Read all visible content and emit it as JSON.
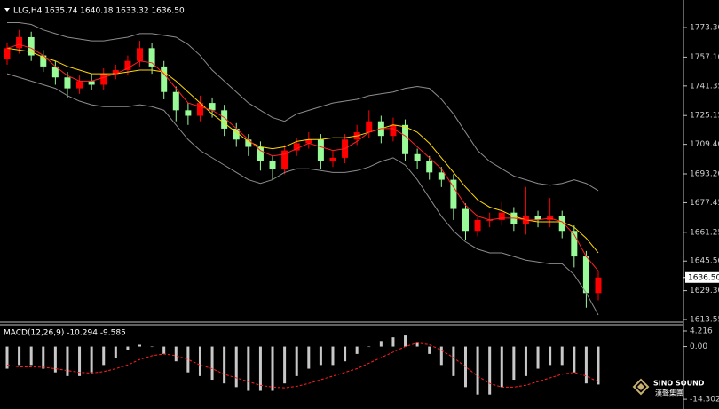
{
  "header": "LLG,H4  1635.74 1640.18 1633.32 1636.50",
  "logo": {
    "name": "SINO SOUND",
    "chinese": "漢聲集團"
  },
  "chart_data": [
    {
      "type": "candlestick",
      "up_color": "#ff0000",
      "down_color": "#98fb98",
      "open": [
        1756,
        1762,
        1768,
        1758,
        1752,
        1746,
        1740,
        1744,
        1742,
        1748,
        1750,
        1755,
        1762,
        1752,
        1738,
        1728,
        1725,
        1732,
        1728,
        1718,
        1712,
        1708,
        1700,
        1696,
        1706,
        1710,
        1712,
        1700,
        1702,
        1712,
        1716,
        1722,
        1714,
        1720,
        1704,
        1700,
        1694,
        1690,
        1674,
        1662,
        1668,
        1668,
        1672,
        1666,
        1670,
        1668,
        1670,
        1662,
        1648,
        1628
      ],
      "high": [
        1765,
        1772,
        1771,
        1761,
        1755,
        1749,
        1747,
        1748,
        1751,
        1753,
        1758,
        1766,
        1765,
        1755,
        1741,
        1732,
        1736,
        1735,
        1731,
        1721,
        1715,
        1711,
        1703,
        1709,
        1713,
        1716,
        1715,
        1706,
        1715,
        1720,
        1728,
        1725,
        1724,
        1723,
        1707,
        1703,
        1697,
        1693,
        1677,
        1671,
        1672,
        1678,
        1675,
        1686,
        1673,
        1680,
        1673,
        1665,
        1651,
        1640.18
      ],
      "low": [
        1753,
        1759,
        1755,
        1749,
        1742,
        1735,
        1737,
        1739,
        1739,
        1745,
        1747,
        1752,
        1748,
        1734,
        1722,
        1720,
        1722,
        1724,
        1714,
        1708,
        1703,
        1695,
        1690,
        1693,
        1703,
        1707,
        1696,
        1697,
        1699,
        1709,
        1713,
        1710,
        1711,
        1700,
        1696,
        1690,
        1686,
        1668,
        1657,
        1659,
        1664,
        1665,
        1662,
        1660,
        1664,
        1664,
        1658,
        1642,
        1620,
        1624
      ],
      "close": [
        1762,
        1768,
        1758,
        1752,
        1746,
        1740,
        1744,
        1742,
        1748,
        1750,
        1755,
        1762,
        1752,
        1738,
        1728,
        1725,
        1732,
        1728,
        1718,
        1712,
        1708,
        1700,
        1696,
        1706,
        1710,
        1712,
        1700,
        1702,
        1712,
        1716,
        1722,
        1714,
        1720,
        1704,
        1700,
        1694,
        1690,
        1674,
        1662,
        1668,
        1668,
        1672,
        1666,
        1670,
        1668,
        1670,
        1662,
        1648,
        1628,
        1636.5
      ],
      "lines": [
        {
          "color": "#8c8c8c",
          "values": [
            1776,
            1776,
            1775,
            1772,
            1770,
            1768,
            1767,
            1766,
            1766,
            1767,
            1768,
            1770,
            1770,
            1769,
            1768,
            1764,
            1758,
            1750,
            1744,
            1738,
            1732,
            1728,
            1724,
            1722,
            1726,
            1728,
            1730,
            1732,
            1733,
            1734,
            1736,
            1737,
            1738,
            1740,
            1741,
            1740,
            1734,
            1726,
            1716,
            1706,
            1700,
            1696,
            1692,
            1690,
            1688,
            1687,
            1688,
            1690,
            1688,
            1684
          ]
        },
        {
          "color": "#8c8c8c",
          "values": [
            1748,
            1746,
            1744,
            1742,
            1740,
            1736,
            1733,
            1731,
            1730,
            1730,
            1730,
            1731,
            1730,
            1728,
            1720,
            1712,
            1706,
            1702,
            1698,
            1694,
            1690,
            1688,
            1690,
            1694,
            1696,
            1696,
            1695,
            1694,
            1694,
            1695,
            1697,
            1700,
            1702,
            1698,
            1690,
            1680,
            1670,
            1662,
            1656,
            1652,
            1650,
            1650,
            1648,
            1646,
            1645,
            1644,
            1644,
            1638,
            1628,
            1616
          ]
        },
        {
          "color": "#ffd700",
          "values": [
            1762,
            1761,
            1760,
            1757,
            1755,
            1752,
            1750,
            1748,
            1748,
            1748,
            1749,
            1750,
            1750,
            1749,
            1744,
            1738,
            1732,
            1726,
            1721,
            1716,
            1711,
            1708,
            1707,
            1708,
            1711,
            1712,
            1712,
            1713,
            1713,
            1714,
            1716,
            1718,
            1720,
            1719,
            1716,
            1710,
            1702,
            1694,
            1686,
            1679,
            1675,
            1673,
            1670,
            1668,
            1667,
            1667,
            1667,
            1664,
            1658,
            1650
          ]
        },
        {
          "color": "#ff2020",
          "values": [
            1762,
            1764,
            1762,
            1758,
            1752,
            1747,
            1744,
            1744,
            1746,
            1748,
            1751,
            1755,
            1754,
            1748,
            1740,
            1732,
            1730,
            1728,
            1724,
            1718,
            1712,
            1706,
            1703,
            1704,
            1707,
            1710,
            1708,
            1706,
            1707,
            1711,
            1716,
            1718,
            1718,
            1714,
            1708,
            1702,
            1696,
            1686,
            1676,
            1670,
            1668,
            1669,
            1669,
            1668,
            1668,
            1669,
            1667,
            1660,
            1648,
            1640
          ]
        }
      ],
      "last_price": {
        "value": 1636.5,
        "label": "1636.50"
      },
      "ylim": [
        1612.6,
        1787.4
      ],
      "yticks": [
        {
          "value": 1773.3,
          "label": "1773.30"
        },
        {
          "value": 1757.1,
          "label": "1757.10"
        },
        {
          "value": 1741.35,
          "label": "1741.35"
        },
        {
          "value": 1725.15,
          "label": "1725.15"
        },
        {
          "value": 1709.4,
          "label": "1709.40"
        },
        {
          "value": 1693.2,
          "label": "1693.20"
        },
        {
          "value": 1677.45,
          "label": "1677.45"
        },
        {
          "value": 1661.25,
          "label": "1661.25"
        },
        {
          "value": 1645.5,
          "label": "1645.50"
        },
        {
          "value": 1629.3,
          "label": "1629.30"
        },
        {
          "value": 1613.55,
          "label": "1613.55"
        }
      ]
    },
    {
      "type": "bar",
      "title": "MACD(12,26,9) -10.294 -9.585",
      "color": "#c8c8c8",
      "values": [
        -6,
        -5,
        -5,
        -6,
        -7,
        -8,
        -8,
        -7,
        -5,
        -3,
        -1,
        0.5,
        0,
        -2,
        -4,
        -7,
        -8,
        -9,
        -10,
        -11,
        -12,
        -12,
        -12,
        -10,
        -8,
        -6,
        -5,
        -5,
        -4,
        -2,
        0,
        1.5,
        2.5,
        3,
        1,
        -2,
        -5,
        -8,
        -11,
        -13,
        -13,
        -11,
        -9,
        -8,
        -6,
        -5,
        -5,
        -7,
        -10,
        -10.294
      ],
      "lines": [
        {
          "color": "#ff2020",
          "dashed": true,
          "values": [
            -5,
            -5.5,
            -5.5,
            -5.6,
            -6,
            -6.5,
            -7,
            -7.2,
            -6.8,
            -6,
            -5,
            -3.5,
            -2.5,
            -2,
            -2.5,
            -3.5,
            -5,
            -6,
            -7.5,
            -8.5,
            -9.5,
            -10.5,
            -11,
            -11.2,
            -10.8,
            -10,
            -9,
            -8,
            -7,
            -6,
            -4.5,
            -3,
            -1.5,
            0,
            1,
            0.5,
            -1,
            -3,
            -5.5,
            -8,
            -10,
            -11,
            -11,
            -10.5,
            -9.5,
            -8.5,
            -7.5,
            -7,
            -8,
            -9.585
          ]
        }
      ],
      "ylim": [
        -16.2,
        5.9
      ],
      "yticks": [
        4.216,
        {
          "value": 0,
          "label": "0.00"
        },
        -14.302
      ]
    }
  ]
}
